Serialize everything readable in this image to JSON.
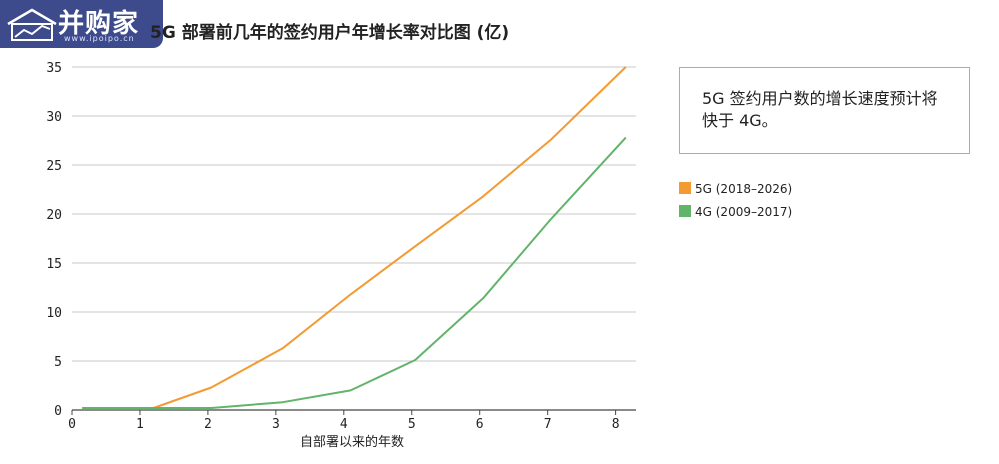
{
  "logo": {
    "name": "并购家",
    "sub": "www.ipoipo.cn"
  },
  "chart_data": {
    "type": "line",
    "title": "5G 部署前几年的签约用户年增长率对比图 (亿)",
    "xlabel": "自部署以来的年数",
    "ylabel": "",
    "x": [
      0,
      1,
      2,
      3,
      4,
      5,
      6,
      7,
      8
    ],
    "xlim": [
      0,
      8.3
    ],
    "ylim": [
      0,
      35
    ],
    "xticks": [
      "0",
      "1",
      "2",
      "3",
      "4",
      "5",
      "6",
      "7",
      "8"
    ],
    "yticks": [
      "0",
      "5",
      "10",
      "15",
      "20",
      "25",
      "30",
      "35"
    ],
    "grid": "horizontal",
    "series": [
      {
        "name": "5G (2018–2026)",
        "color": "#f39a32",
        "x": [
          0.15,
          1.2,
          2.05,
          3.1,
          4.1,
          5.05,
          6.05,
          7.05,
          8.15
        ],
        "values": [
          0.2,
          0.2,
          2.3,
          6.3,
          11.8,
          16.7,
          21.8,
          27.6,
          35.0
        ]
      },
      {
        "name": "4G (2009–2017)",
        "color": "#62b46a",
        "x": [
          0.15,
          1.2,
          2.05,
          3.1,
          4.1,
          5.05,
          6.05,
          7.05,
          8.15
        ],
        "values": [
          0.2,
          0.2,
          0.2,
          0.8,
          2.0,
          5.1,
          11.4,
          19.5,
          27.8
        ]
      }
    ],
    "legend_position": "right"
  },
  "annotation": {
    "text": "5G 签约用户数的增长速度预计将快于 4G。"
  },
  "legend": {
    "items": [
      {
        "label": "5G (2018–2026)",
        "color": "#f39a32"
      },
      {
        "label": "4G (2009–2017)",
        "color": "#62b46a"
      }
    ]
  }
}
